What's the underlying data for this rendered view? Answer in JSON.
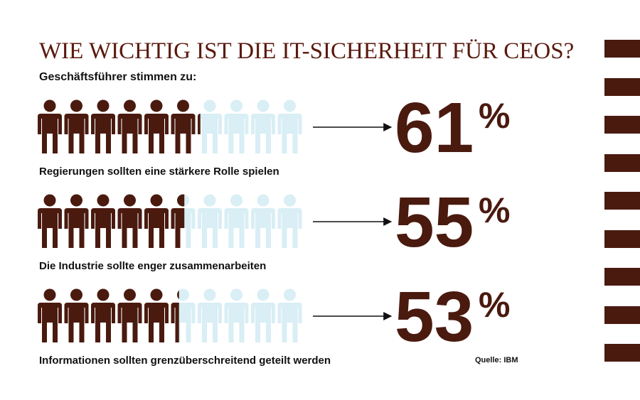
{
  "chart_data": {
    "type": "pictogram",
    "title": "WIE WICHTIG IST DIE IT-SICHERHEIT FÜR CEOS?",
    "subtitle": "Geschäftsführer stimmen zu:",
    "categories": [
      "Regierungen sollten eine stärkere Rolle spielen",
      "Die Industrie sollte enger zusammenarbeiten",
      "Informationen sollten grenzüberschreitend geteilt werden"
    ],
    "values": [
      61,
      55,
      53
    ],
    "unit": "%",
    "source": "Quelle: IBM",
    "color": "#4a1a0f",
    "empty_color": "#d9eef5",
    "icons": 10,
    "ylim": [
      0,
      100
    ]
  }
}
